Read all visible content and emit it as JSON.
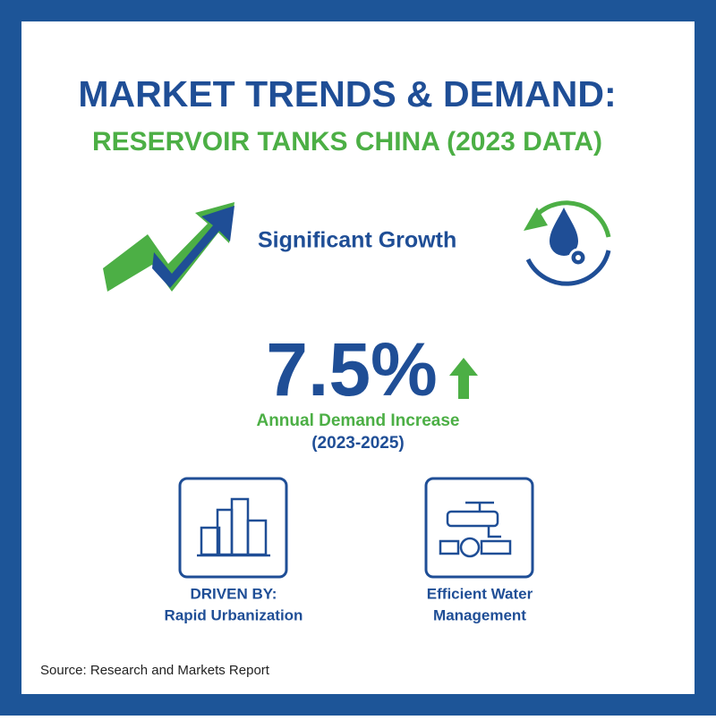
{
  "header": {
    "title": "MARKET TRENDS & DEMAND:",
    "subtitle": "RESERVOIR TANKS CHINA (2023 DATA)"
  },
  "growth": {
    "label": "Significant Growth"
  },
  "stat": {
    "value": "7.5%",
    "caption": "Annual Demand Increase",
    "period": "(2023-2025)"
  },
  "drivers": [
    {
      "lines": [
        "DRIVEN BY:",
        "Rapid Urbanization"
      ]
    },
    {
      "lines": [
        "Efficient Water",
        "Management"
      ]
    }
  ],
  "source": "Source: Research and Markets Report"
}
